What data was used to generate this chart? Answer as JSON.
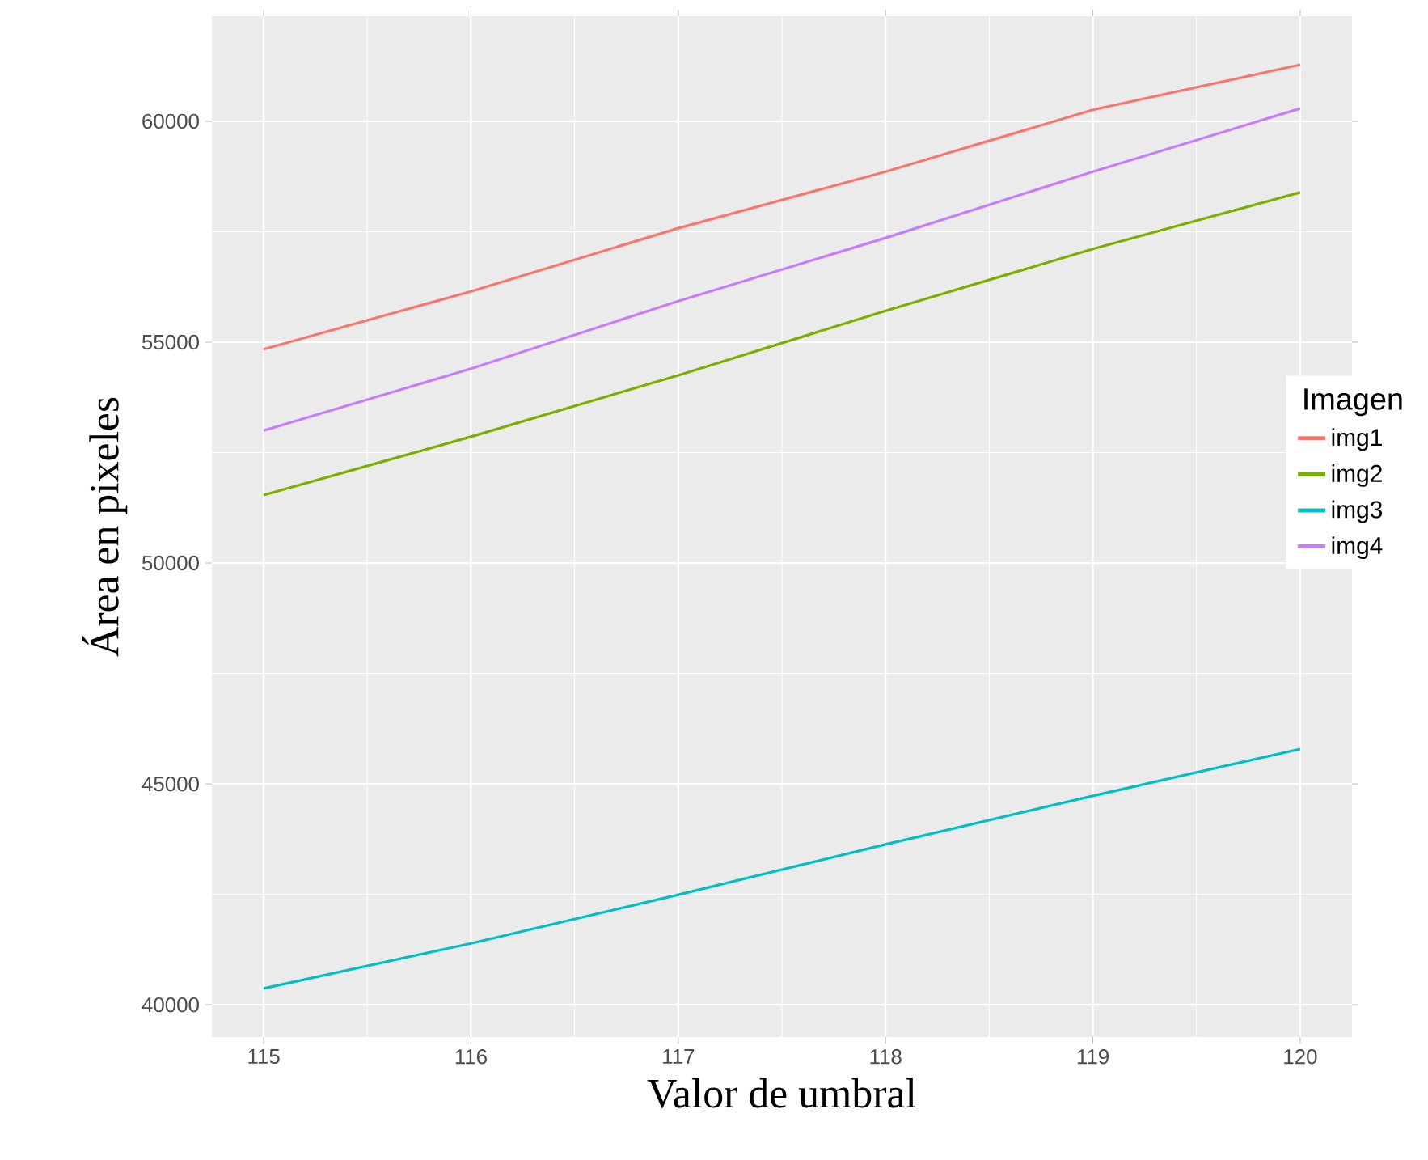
{
  "chart_data": {
    "type": "line",
    "xlabel": "Valor de umbral",
    "ylabel": "Área en pixeles",
    "legend_title": "Imagen",
    "x": [
      115,
      116,
      117,
      118,
      119,
      120
    ],
    "series": [
      {
        "name": "img1",
        "color": "#f8766d",
        "values": [
          54840,
          56150,
          57580,
          58860,
          60260,
          61280
        ]
      },
      {
        "name": "img2",
        "color": "#7cae00",
        "values": [
          51540,
          52860,
          54250,
          55710,
          57110,
          58390
        ]
      },
      {
        "name": "img3",
        "color": "#00bfc4",
        "values": [
          40370,
          41390,
          42490,
          43630,
          44730,
          45790
        ]
      },
      {
        "name": "img4",
        "color": "#c77cff",
        "values": [
          53000,
          54400,
          55930,
          57360,
          58860,
          60290
        ]
      }
    ],
    "xlim": [
      114.75,
      120.25
    ],
    "ylim": [
      39270,
      62380
    ],
    "xticks": [
      115,
      116,
      117,
      118,
      119,
      120
    ],
    "yticks": [
      40000,
      45000,
      50000,
      55000,
      60000
    ],
    "grid": true,
    "legend": "right",
    "line_style": "solid",
    "marker": "none"
  }
}
